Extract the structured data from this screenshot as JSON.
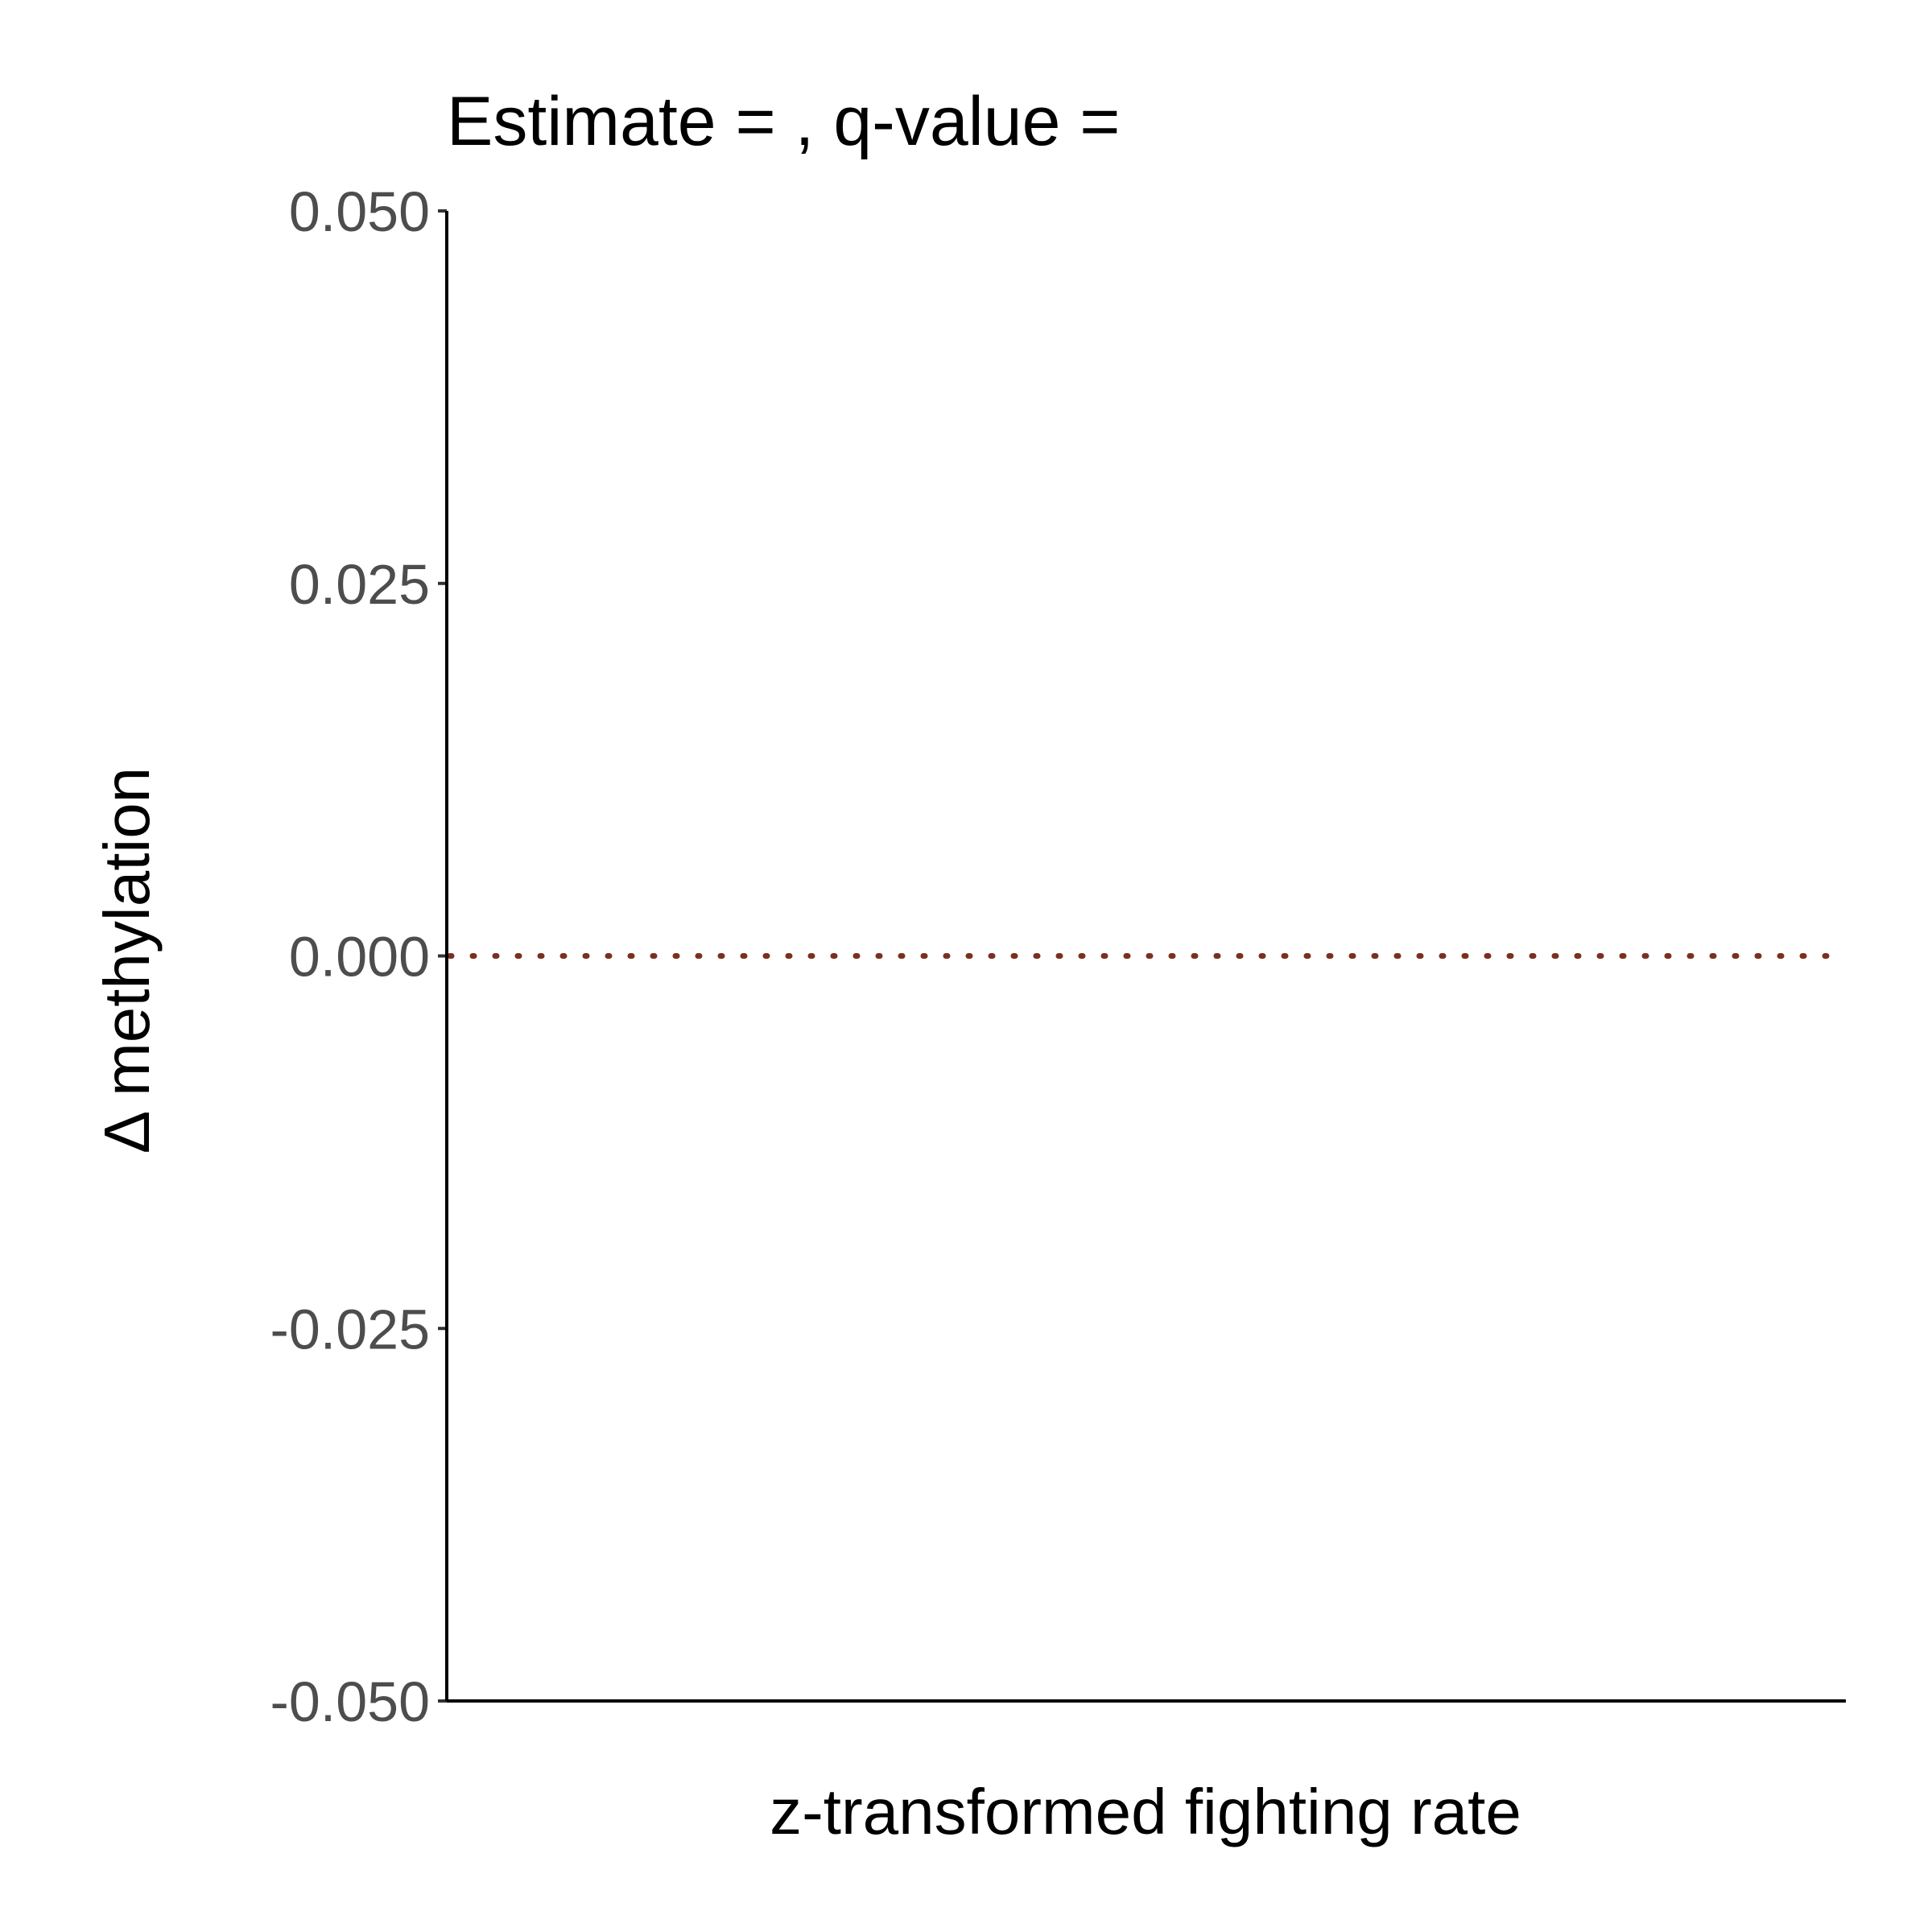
{
  "chart_data": {
    "type": "line",
    "title": "Estimate = , q-value =",
    "xlabel": "z-transformed fighting rate",
    "ylabel": "Δ methylation",
    "ylim": [
      -0.05,
      0.05
    ],
    "y_ticks": [
      {
        "value": -0.05,
        "label": "-0.050"
      },
      {
        "value": -0.025,
        "label": "-0.025"
      },
      {
        "value": 0,
        "label": "0.000"
      },
      {
        "value": 0.025,
        "label": "0.025"
      },
      {
        "value": 0.05,
        "label": "0.050"
      }
    ],
    "x_ticks": [],
    "grid": false,
    "legend": "none",
    "reference_line": {
      "y": 0,
      "style": "dotted",
      "color": "#7a3020"
    },
    "series": []
  }
}
